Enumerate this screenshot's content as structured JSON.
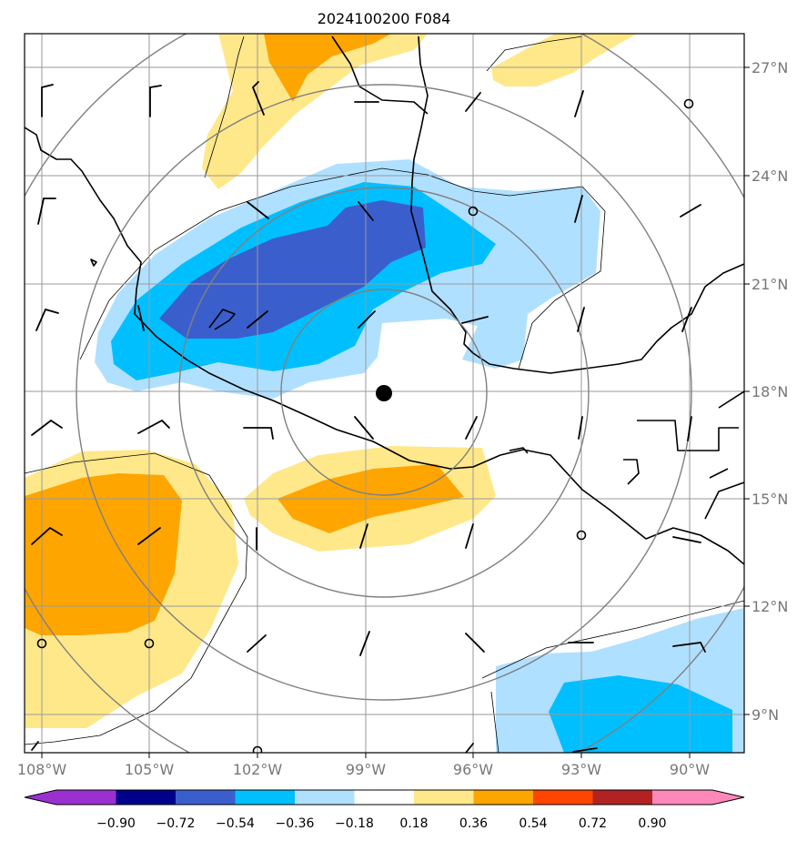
{
  "title": "2024100200 F084",
  "lon_labels": [
    "108°W",
    "105°W",
    "102°W",
    "99°W",
    "96°W",
    "93°W",
    "90°W"
  ],
  "lat_labels": [
    "27°N",
    "24°N",
    "21°N",
    "18°N",
    "15°N",
    "12°N",
    "9°N"
  ],
  "colorbar": {
    "labels": [
      "−0.90",
      "−0.72",
      "−0.54",
      "−0.36",
      "−0.18",
      "0.18",
      "0.36",
      "0.54",
      "0.72",
      "0.90"
    ],
    "colors": [
      "#9b30d0",
      "#00008b",
      "#3a5fcd",
      "#00bfff",
      "#b0e0ff",
      "#ffffff",
      "#ffe88a",
      "#ffa500",
      "#ff4500",
      "#b22222",
      "#ff88bb"
    ]
  },
  "center_marker": {
    "lon": -98.6,
    "lat": 18.0
  },
  "colors": {
    "grid": "#9a9a9a",
    "rings": "#808080",
    "axis_labels": "#777777"
  }
}
